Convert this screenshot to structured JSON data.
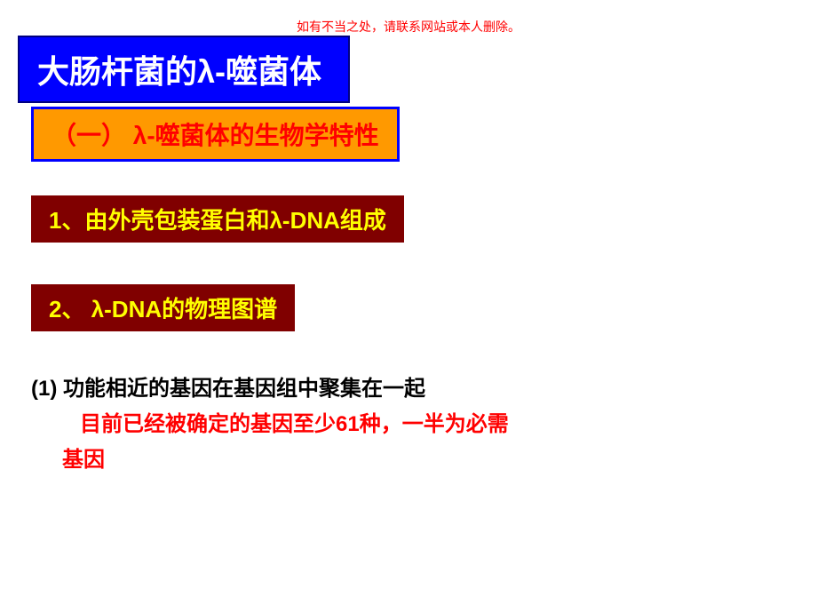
{
  "disclaimer": {
    "text": "如有不当之处，请联系网站或本人删除。",
    "color": "#ff0000",
    "fontsize": 14
  },
  "title": {
    "text": "大肠杆菌的λ-噬菌体",
    "background_color": "#0000ff",
    "text_color": "#ffffff",
    "fontsize": 36
  },
  "subtitle": {
    "text": "（一） λ-噬菌体的生物学特性",
    "background_color": "#ff9900",
    "border_color": "#0000ff",
    "text_color": "#ff0000",
    "fontsize": 28
  },
  "point1": {
    "text": "1、由外壳包装蛋白和λ-DNA组成",
    "background_color": "#800000",
    "text_color": "#ffff00",
    "fontsize": 26
  },
  "point2": {
    "text": "2、 λ-DNA的物理图谱",
    "background_color": "#800000",
    "text_color": "#ffff00",
    "fontsize": 26
  },
  "body": {
    "line1": {
      "text": "(1) 功能相近的基因在基因组中聚集在一起",
      "color": "#000000",
      "fontsize": 24
    },
    "line2": {
      "text": "目前已经被确定的基因至少61种，一半为必需",
      "color": "#ff0000",
      "fontsize": 24
    },
    "line3": {
      "text": "基因",
      "color": "#ff0000",
      "fontsize": 24
    }
  }
}
